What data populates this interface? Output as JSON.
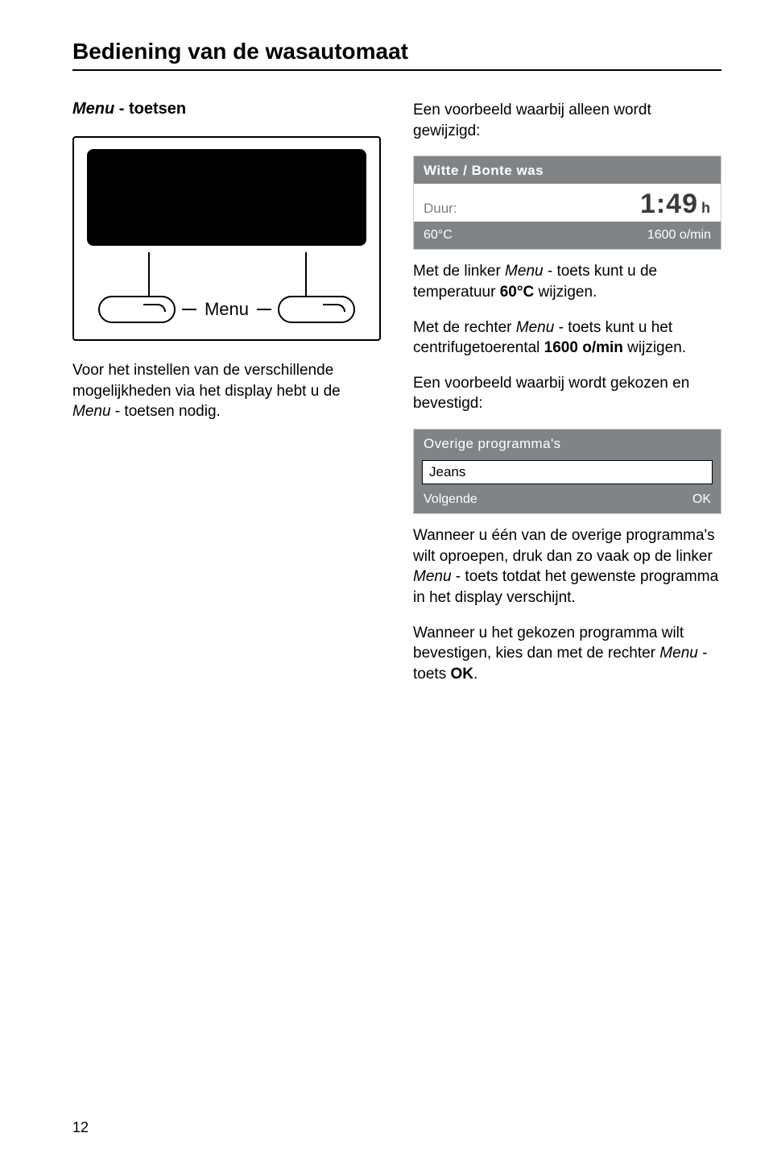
{
  "page": {
    "title": "Bediening van de wasautomaat",
    "number": "12"
  },
  "left": {
    "subhead_italic": "Menu",
    "subhead_rest": " - toetsen",
    "diagram": {
      "menu_label": "Menu"
    },
    "para1_a": "Voor het instellen van de verschillende mogelijkheden via het display hebt u de ",
    "para1_ital": "Menu",
    "para1_b": " - toetsen nodig."
  },
  "right": {
    "intro": "Een voorbeeld waarbij alleen wordt gewijzigd:",
    "lcd1": {
      "program": "Witte / Bonte was",
      "duur_label": "Duur:",
      "time": "1:49",
      "time_unit": "h",
      "temp": "60°C",
      "spin": "1600 o/min",
      "bg_color": "#808487",
      "text_color": "#ffffff",
      "mid_bg": "#ffffff"
    },
    "para2_a": "Met de linker ",
    "para2_ital": "Menu",
    "para2_b": " - toets kunt u de temperatuur ",
    "para2_bold": "60°C",
    "para2_c": " wijzigen.",
    "para3_a": "Met de rechter ",
    "para3_ital": "Menu",
    "para3_b": " - toets kunt u het centrifugetoerental ",
    "para3_bold": "1600 o/min",
    "para3_c": " wijzigen.",
    "para4": "Een voorbeeld waarbij wordt gekozen en bevestigd:",
    "lcd2": {
      "title": "Overige programma's",
      "selected": "Jeans",
      "left": "Volgende",
      "right": "OK",
      "bg_color": "#808487"
    },
    "para5_a": "Wanneer u één van de overige programma's wilt oproepen, druk dan zo vaak op de linker ",
    "para5_ital": "Menu",
    "para5_b": " - toets totdat het gewenste programma in het display verschijnt.",
    "para6_a": "Wanneer u het gekozen programma wilt bevestigen, kies dan met de rechter ",
    "para6_ital": "Menu",
    "para6_b": " - toets ",
    "para6_bold": "OK",
    "para6_c": "."
  }
}
